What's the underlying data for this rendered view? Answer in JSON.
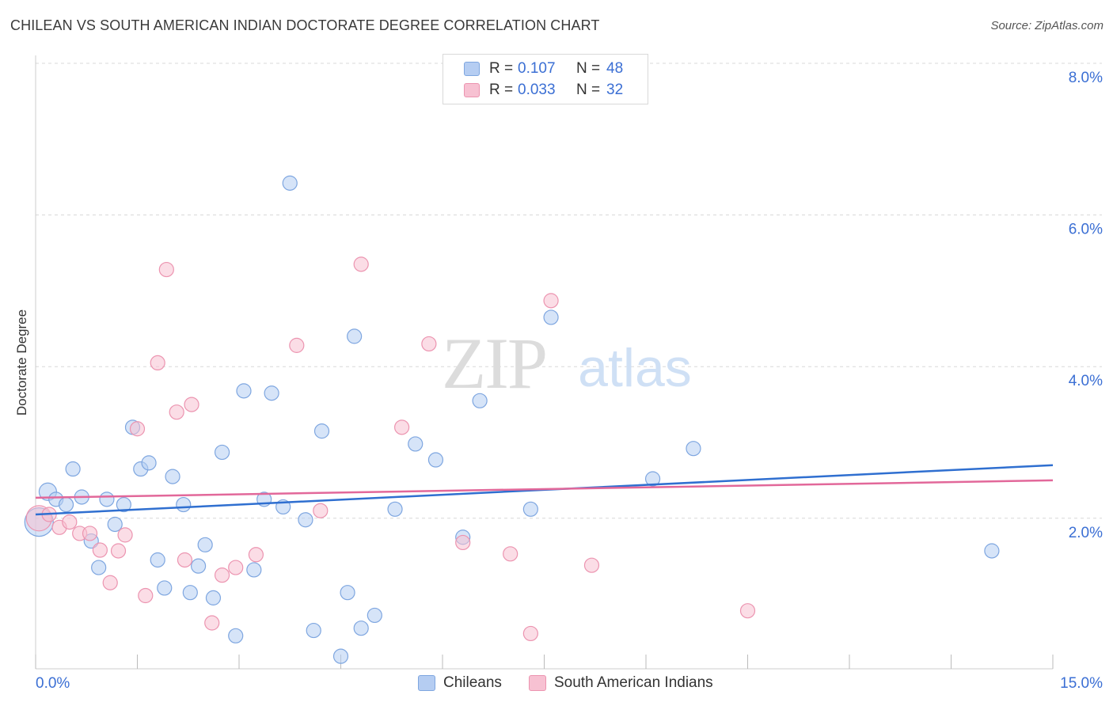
{
  "title": "CHILEAN VS SOUTH AMERICAN INDIAN DOCTORATE DEGREE CORRELATION CHART",
  "source": "Source: ZipAtlas.com",
  "watermark": {
    "zip": "ZIP",
    "atlas": "atlas"
  },
  "legend": {
    "r_label": "R =",
    "n_label": "N =",
    "rows": [
      {
        "r": "0.107",
        "n": "48"
      },
      {
        "r": "0.033",
        "n": "32"
      }
    ]
  },
  "bottom_legend": [
    "Chileans",
    "South American Indians"
  ],
  "colors": {
    "blue_fill": "#b5cdf2",
    "blue_stroke": "#7ea6e0",
    "blue_line": "#2f6fd0",
    "pink_fill": "#f7c1d2",
    "pink_stroke": "#ec94b0",
    "pink_line": "#e2689a",
    "axis_text": "#3b6fd4",
    "grid": "#d8d8d8"
  },
  "chart_data": {
    "type": "scatter",
    "title": "CHILEAN VS SOUTH AMERICAN INDIAN DOCTORATE DEGREE CORRELATION CHART",
    "xlabel": "",
    "ylabel": "Doctorate Degree",
    "xlim": [
      0,
      15
    ],
    "ylim": [
      0,
      8.2
    ],
    "x_tick_labels": [
      "0.0%",
      "15.0%"
    ],
    "y_ticks": [
      2,
      4,
      6,
      8
    ],
    "y_tick_labels": [
      "2.0%",
      "4.0%",
      "6.0%",
      "8.0%"
    ],
    "series": [
      {
        "name": "Chileans",
        "color": "blue",
        "trend": [
          [
            0,
            2.05
          ],
          [
            15,
            2.7
          ]
        ],
        "points": [
          [
            0.05,
            1.95,
            18
          ],
          [
            0.18,
            2.35,
            11
          ],
          [
            0.3,
            2.25,
            9
          ],
          [
            0.45,
            2.18,
            9
          ],
          [
            0.55,
            2.65,
            9
          ],
          [
            0.68,
            2.28,
            9
          ],
          [
            0.82,
            1.7,
            9
          ],
          [
            0.93,
            1.35,
            9
          ],
          [
            1.05,
            2.25,
            9
          ],
          [
            1.17,
            1.92,
            9
          ],
          [
            1.3,
            2.18,
            9
          ],
          [
            1.43,
            3.2,
            9
          ],
          [
            1.55,
            2.65,
            9
          ],
          [
            1.67,
            2.73,
            9
          ],
          [
            1.8,
            1.45,
            9
          ],
          [
            1.9,
            1.08,
            9
          ],
          [
            2.02,
            2.55,
            9
          ],
          [
            2.18,
            2.18,
            9
          ],
          [
            2.28,
            1.02,
            9
          ],
          [
            2.4,
            1.37,
            9
          ],
          [
            2.5,
            1.65,
            9
          ],
          [
            2.62,
            0.95,
            9
          ],
          [
            2.75,
            2.87,
            9
          ],
          [
            2.95,
            0.45,
            9
          ],
          [
            3.07,
            3.68,
            9
          ],
          [
            3.22,
            1.32,
            9
          ],
          [
            3.37,
            2.25,
            9
          ],
          [
            3.48,
            3.65,
            9
          ],
          [
            3.65,
            2.15,
            9
          ],
          [
            3.75,
            6.42,
            9
          ],
          [
            3.98,
            1.98,
            9
          ],
          [
            4.1,
            0.52,
            9
          ],
          [
            4.22,
            3.15,
            9
          ],
          [
            4.5,
            0.18,
            9
          ],
          [
            4.6,
            1.02,
            9
          ],
          [
            4.7,
            4.4,
            9
          ],
          [
            4.8,
            0.55,
            9
          ],
          [
            5.0,
            0.72,
            9
          ],
          [
            5.3,
            2.12,
            9
          ],
          [
            5.6,
            2.98,
            9
          ],
          [
            5.9,
            2.77,
            9
          ],
          [
            6.3,
            1.75,
            9
          ],
          [
            6.55,
            3.55,
            9
          ],
          [
            7.3,
            2.12,
            9
          ],
          [
            7.6,
            4.65,
            9
          ],
          [
            9.1,
            2.52,
            9
          ],
          [
            9.7,
            2.92,
            9
          ],
          [
            14.1,
            1.57,
            9
          ]
        ]
      },
      {
        "name": "South American Indians",
        "color": "pink",
        "trend": [
          [
            0,
            2.27
          ],
          [
            15,
            2.5
          ]
        ],
        "points": [
          [
            0.05,
            2.0,
            16
          ],
          [
            0.2,
            2.05,
            9
          ],
          [
            0.35,
            1.88,
            9
          ],
          [
            0.5,
            1.95,
            9
          ],
          [
            0.65,
            1.8,
            9
          ],
          [
            0.8,
            1.8,
            9
          ],
          [
            0.95,
            1.58,
            9
          ],
          [
            1.1,
            1.15,
            9
          ],
          [
            1.22,
            1.57,
            9
          ],
          [
            1.32,
            1.78,
            9
          ],
          [
            1.5,
            3.18,
            9
          ],
          [
            1.62,
            0.98,
            9
          ],
          [
            1.8,
            4.05,
            9
          ],
          [
            1.93,
            5.28,
            9
          ],
          [
            2.08,
            3.4,
            9
          ],
          [
            2.2,
            1.45,
            9
          ],
          [
            2.3,
            3.5,
            9
          ],
          [
            2.6,
            0.62,
            9
          ],
          [
            2.75,
            1.25,
            9
          ],
          [
            2.95,
            1.35,
            9
          ],
          [
            3.25,
            1.52,
            9
          ],
          [
            3.85,
            4.28,
            9
          ],
          [
            4.2,
            2.1,
            9
          ],
          [
            4.8,
            5.35,
            9
          ],
          [
            5.4,
            3.2,
            9
          ],
          [
            5.8,
            4.3,
            9
          ],
          [
            6.3,
            1.68,
            9
          ],
          [
            7.0,
            1.53,
            9
          ],
          [
            7.3,
            0.48,
            9
          ],
          [
            7.6,
            4.87,
            9
          ],
          [
            8.2,
            1.38,
            9
          ],
          [
            10.5,
            0.78,
            9
          ]
        ]
      }
    ]
  }
}
